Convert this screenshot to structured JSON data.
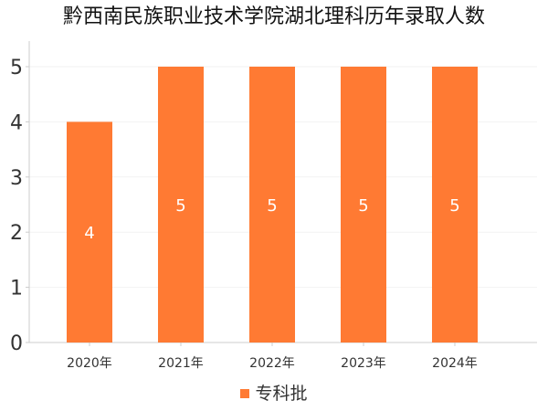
{
  "colors": {
    "bar": "#ff7a33",
    "axis": "#cccccc",
    "grid": "#f2f2f2",
    "tick_text": "#333333",
    "data_label": "#ffffff"
  },
  "chart_data": {
    "type": "bar",
    "title": "黔西南民族职业技术学院湖北理科历年录取人数",
    "xlabel": "",
    "ylabel": "",
    "categories": [
      "2020年",
      "2021年",
      "2022年",
      "2023年",
      "2024年"
    ],
    "series": [
      {
        "name": "专科批",
        "values": [
          4,
          5,
          5,
          5,
          5
        ]
      }
    ],
    "ylim": [
      0,
      5
    ],
    "yticks": [
      "0",
      "1",
      "2",
      "3",
      "4",
      "5"
    ],
    "data_labels": [
      "4",
      "5",
      "5",
      "5",
      "5"
    ],
    "grid": true,
    "legend_position": "bottom"
  }
}
